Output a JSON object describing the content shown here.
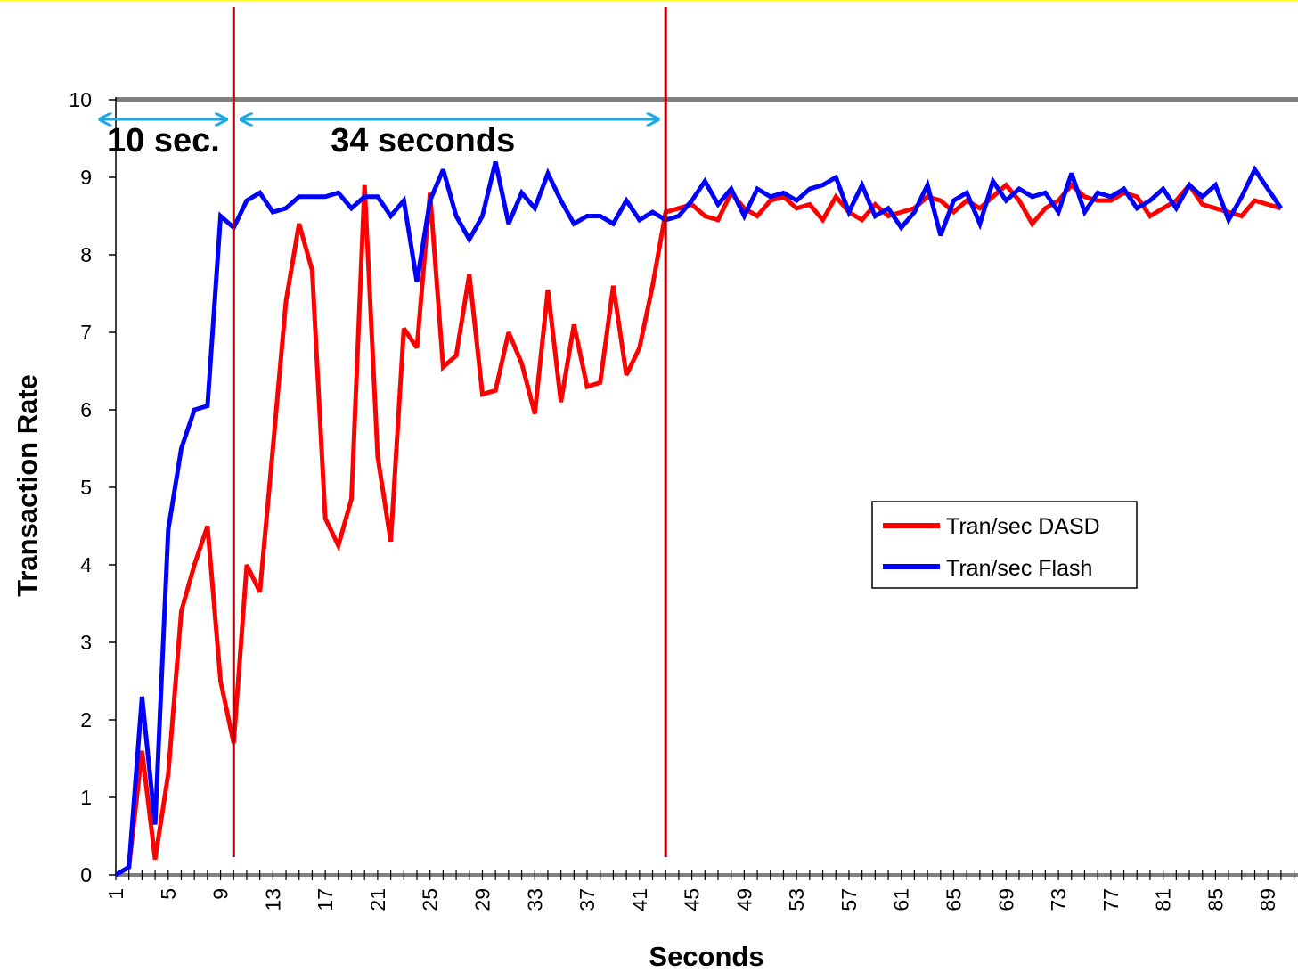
{
  "chart_data": {
    "type": "line",
    "xlabel": "Seconds",
    "ylabel": "Transaction Rate",
    "ylim": [
      0,
      10
    ],
    "yticks": [
      0,
      1,
      2,
      3,
      4,
      5,
      6,
      7,
      8,
      9,
      10
    ],
    "x_start": 1,
    "x_end": 90,
    "xtick_labels": [
      "1",
      "5",
      "9",
      "13",
      "17",
      "21",
      "25",
      "29",
      "33",
      "37",
      "41",
      "45",
      "49",
      "53",
      "57",
      "61",
      "65",
      "69",
      "73",
      "77",
      "81",
      "85",
      "89"
    ],
    "legend_placement": "center-right",
    "grid": false,
    "series": [
      {
        "name": "Tran/sec DASD",
        "color": "#ff0000",
        "values": [
          0,
          0.1,
          1.6,
          0.2,
          1.3,
          3.4,
          4.0,
          4.5,
          2.5,
          1.7,
          4.0,
          3.65,
          5.5,
          7.4,
          8.4,
          7.8,
          4.6,
          4.25,
          4.85,
          8.9,
          5.4,
          4.3,
          7.05,
          6.8,
          8.8,
          6.55,
          6.7,
          7.75,
          6.2,
          6.25,
          7.0,
          6.6,
          5.95,
          7.55,
          6.1,
          7.1,
          6.3,
          6.35,
          7.6,
          6.45,
          6.8,
          7.6,
          8.55,
          8.6,
          8.65,
          8.5,
          8.45,
          8.8,
          8.6,
          8.5,
          8.7,
          8.75,
          8.6,
          8.65,
          8.45,
          8.75,
          8.55,
          8.45,
          8.65,
          8.5,
          8.55,
          8.6,
          8.75,
          8.7,
          8.55,
          8.7,
          8.6,
          8.75,
          8.9,
          8.7,
          8.4,
          8.6,
          8.7,
          8.9,
          8.75,
          8.7,
          8.7,
          8.8,
          8.75,
          8.5,
          8.6,
          8.7,
          8.9,
          8.65,
          8.6,
          8.55,
          8.5,
          8.7,
          8.65,
          8.6
        ]
      },
      {
        "name": "Tran/sec Flash",
        "color": "#0000ff",
        "values": [
          0,
          0.1,
          2.3,
          0.65,
          4.45,
          5.5,
          6.0,
          6.05,
          8.5,
          8.35,
          8.7,
          8.8,
          8.55,
          8.6,
          8.75,
          8.75,
          8.75,
          8.8,
          8.6,
          8.75,
          8.75,
          8.5,
          8.7,
          7.65,
          8.7,
          9.1,
          8.5,
          8.2,
          8.5,
          9.2,
          8.4,
          8.8,
          8.6,
          9.05,
          8.7,
          8.4,
          8.5,
          8.5,
          8.4,
          8.7,
          8.45,
          8.55,
          8.45,
          8.5,
          8.7,
          8.95,
          8.65,
          8.85,
          8.5,
          8.85,
          8.75,
          8.8,
          8.7,
          8.85,
          8.9,
          9.0,
          8.55,
          8.9,
          8.5,
          8.6,
          8.35,
          8.55,
          8.9,
          8.25,
          8.7,
          8.8,
          8.4,
          8.95,
          8.7,
          8.85,
          8.75,
          8.8,
          8.55,
          9.05,
          8.55,
          8.8,
          8.75,
          8.85,
          8.6,
          8.7,
          8.85,
          8.6,
          8.9,
          8.75,
          8.9,
          8.45,
          8.75,
          9.1,
          8.85,
          8.6
        ]
      }
    ],
    "markers": [
      10,
      43
    ],
    "spans": [
      {
        "from": 1,
        "to": 10,
        "label": "10 sec."
      },
      {
        "from": 10,
        "to": 43,
        "label": "34 seconds"
      }
    ],
    "colors": {
      "marker_line": "#b20000",
      "span_arrow": "#1aa9e6",
      "plot_top_border": "#808080",
      "page_top_border": "#ffff33"
    }
  }
}
